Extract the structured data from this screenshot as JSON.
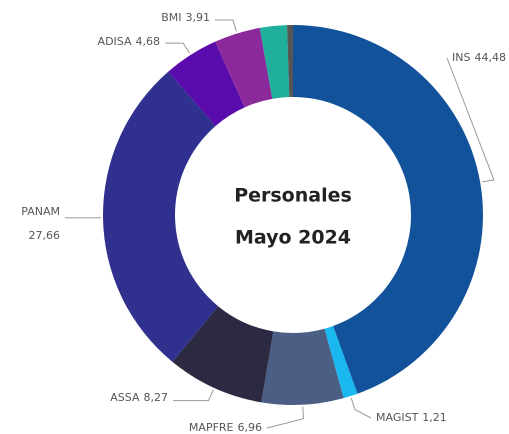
{
  "chart_data": {
    "type": "donut",
    "title": "Personales",
    "subtitle": "Mayo 2024",
    "categories": [
      "INS",
      "MAGIST",
      "MAPFRE",
      "ASSA",
      "PANAM",
      "ADISA",
      "BMI",
      null,
      null
    ],
    "values": [
      44.48,
      1.21,
      6.96,
      8.27,
      27.66,
      4.68,
      3.91,
      2.3,
      0.5
    ],
    "value_labels": [
      "44,48",
      "1,21",
      "6,96",
      "8,27",
      "27,66",
      "4,68",
      "3,91",
      null,
      null
    ],
    "colors": [
      "#12529a",
      "#19b9f0",
      "#4b5f85",
      "#2c2a42",
      "#30308f",
      "#5a0bab",
      "#8c2a9c",
      "#1faf9a",
      "#555555"
    ]
  }
}
